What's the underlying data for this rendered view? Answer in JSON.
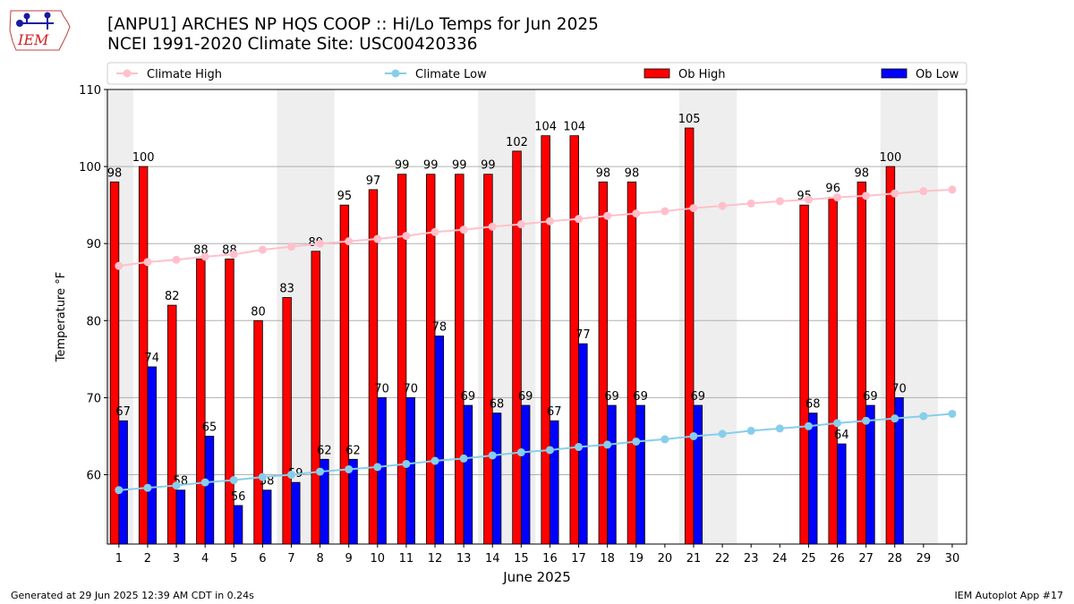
{
  "header": {
    "title_line1": "[ANPU1] ARCHES NP HQS COOP :: Hi/Lo Temps for Jun 2025",
    "title_line2": "NCEI 1991-2020 Climate Site: USC00420336",
    "logo_text": "IEM"
  },
  "footer": {
    "generated": "Generated at 29 Jun 2025 12:39 AM CDT in 0.24s",
    "app": "IEM Autoplot App #17"
  },
  "colors": {
    "ob_high": "#ff0000",
    "ob_low": "#0000ff",
    "climate_high": "#ffc0cb",
    "climate_low": "#87ceeb",
    "weekend_band": "#eeeeee",
    "grid": "#b0b0b0"
  },
  "chart_data": {
    "type": "bar",
    "xlabel": "June 2025",
    "ylabel": "Temperature °F",
    "x": [
      1,
      2,
      3,
      4,
      5,
      6,
      7,
      8,
      9,
      10,
      11,
      12,
      13,
      14,
      15,
      16,
      17,
      18,
      19,
      20,
      21,
      22,
      23,
      24,
      25,
      26,
      27,
      28,
      29,
      30
    ],
    "xlim": [
      0.6,
      30.5
    ],
    "ylim": [
      51,
      110
    ],
    "yticks": [
      60,
      70,
      80,
      90,
      100,
      110
    ],
    "grid": "horizontal",
    "legend_position": "top",
    "shaded_days": [
      1,
      7,
      8,
      14,
      15,
      21,
      22,
      28,
      29
    ],
    "series": [
      {
        "name": "Climate High",
        "type": "line",
        "values": [
          87.1,
          87.6,
          87.9,
          88.3,
          88.6,
          89.2,
          89.6,
          90.0,
          90.3,
          90.6,
          91.0,
          91.5,
          91.8,
          92.2,
          92.5,
          92.9,
          93.2,
          93.6,
          93.9,
          94.2,
          94.6,
          94.9,
          95.2,
          95.5,
          95.7,
          96.0,
          96.2,
          96.5,
          96.8,
          97.0
        ]
      },
      {
        "name": "Climate Low",
        "type": "line",
        "values": [
          58.0,
          58.3,
          58.6,
          59.0,
          59.3,
          59.7,
          60.0,
          60.4,
          60.7,
          61.0,
          61.4,
          61.8,
          62.1,
          62.5,
          62.9,
          63.2,
          63.6,
          63.9,
          64.3,
          64.6,
          65.0,
          65.3,
          65.7,
          66.0,
          66.3,
          66.7,
          67.0,
          67.3,
          67.6,
          67.9
        ]
      },
      {
        "name": "Ob High",
        "type": "bar",
        "values": [
          98,
          100,
          82,
          88,
          88,
          80,
          83,
          89,
          95,
          97,
          99,
          99,
          99,
          99,
          102,
          104,
          104,
          98,
          98,
          null,
          105,
          null,
          null,
          null,
          95,
          96,
          98,
          100,
          null,
          null
        ]
      },
      {
        "name": "Ob Low",
        "type": "bar",
        "values": [
          67,
          74,
          58,
          65,
          56,
          58,
          59,
          62,
          62,
          70,
          70,
          78,
          69,
          68,
          69,
          67,
          77,
          69,
          69,
          null,
          69,
          null,
          null,
          null,
          68,
          64,
          69,
          70,
          null,
          null
        ]
      }
    ]
  }
}
